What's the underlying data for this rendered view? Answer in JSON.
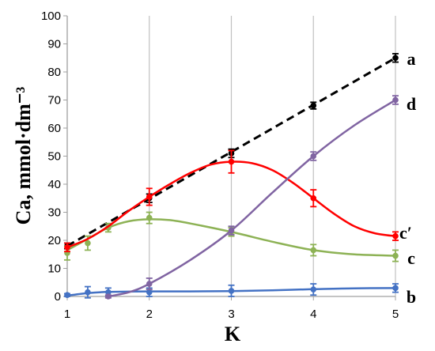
{
  "chart_data": {
    "type": "scatter",
    "xlabel": "K",
    "ylabel": "Ca, mmol·dm⁻³",
    "xlim": [
      1,
      5
    ],
    "ylim": [
      0,
      100
    ],
    "x_ticks": [
      "1",
      "2",
      "3",
      "4",
      "5"
    ],
    "y_ticks": [
      "0",
      "10",
      "20",
      "30",
      "40",
      "50",
      "60",
      "70",
      "80",
      "90",
      "100"
    ],
    "grid": "vertical",
    "series": [
      {
        "name": "a",
        "color": "#000000",
        "line_style": "dashed",
        "points": [
          {
            "x": 1,
            "y": 18,
            "err": 1
          },
          {
            "x": 2,
            "y": 35,
            "err": 1.5
          },
          {
            "x": 3,
            "y": 51,
            "err": 1.5
          },
          {
            "x": 4,
            "y": 68,
            "err": 1.2
          },
          {
            "x": 5,
            "y": 85,
            "err": 1.5
          }
        ],
        "curve": [
          [
            1,
            18
          ],
          [
            5,
            85
          ]
        ]
      },
      {
        "name": "b",
        "color": "#4472c4",
        "line_style": "solid",
        "points": [
          {
            "x": 1,
            "y": 0.5,
            "err": 0.5
          },
          {
            "x": 1.25,
            "y": 1.5,
            "err": 2
          },
          {
            "x": 1.5,
            "y": 1.5,
            "err": 1.5
          },
          {
            "x": 2,
            "y": 1.5,
            "err": 1.5
          },
          {
            "x": 3,
            "y": 2,
            "err": 2
          },
          {
            "x": 4,
            "y": 2.5,
            "err": 2
          },
          {
            "x": 5,
            "y": 3,
            "err": 1.5
          }
        ],
        "curve": [
          [
            1,
            0.3
          ],
          [
            1.25,
            1.2
          ],
          [
            1.5,
            1.6
          ],
          [
            2,
            1.8
          ],
          [
            2.5,
            1.8
          ],
          [
            3,
            1.9
          ],
          [
            3.5,
            2.2
          ],
          [
            4,
            2.6
          ],
          [
            4.5,
            2.9
          ],
          [
            5,
            3
          ]
        ]
      },
      {
        "name": "c",
        "color": "#8db255",
        "line_style": "solid",
        "points": [
          {
            "x": 1,
            "y": 15.5,
            "err": 2.5
          },
          {
            "x": 1.25,
            "y": 19,
            "err": 2.5
          },
          {
            "x": 1.5,
            "y": 24.5,
            "err": 1.5
          },
          {
            "x": 2,
            "y": 28,
            "err": 2
          },
          {
            "x": 3,
            "y": 23,
            "err": 1.5
          },
          {
            "x": 4,
            "y": 16.5,
            "err": 2
          },
          {
            "x": 5,
            "y": 14.5,
            "err": 2
          }
        ],
        "curve": [
          [
            1,
            16.5
          ],
          [
            1.25,
            20.5
          ],
          [
            1.5,
            24.5
          ],
          [
            1.75,
            26.8
          ],
          [
            2,
            27.5
          ],
          [
            2.25,
            27.2
          ],
          [
            2.5,
            26
          ],
          [
            3,
            23
          ],
          [
            3.5,
            19.5
          ],
          [
            4,
            16.5
          ],
          [
            4.5,
            15
          ],
          [
            5,
            14.5
          ]
        ]
      },
      {
        "name": "c′",
        "color": "#ff0000",
        "line_style": "solid",
        "points": [
          {
            "x": 1,
            "y": 17.5,
            "err": 1.5
          },
          {
            "x": 2,
            "y": 35.5,
            "err": 3
          },
          {
            "x": 3,
            "y": 48,
            "err": 4
          },
          {
            "x": 4,
            "y": 35,
            "err": 3
          },
          {
            "x": 5,
            "y": 21.5,
            "err": 1.5
          }
        ],
        "curve": [
          [
            1,
            17.5
          ],
          [
            1.25,
            20.5
          ],
          [
            1.5,
            25
          ],
          [
            1.75,
            30.5
          ],
          [
            2,
            35.5
          ],
          [
            2.25,
            40
          ],
          [
            2.5,
            44
          ],
          [
            2.75,
            47
          ],
          [
            3,
            48
          ],
          [
            3.25,
            47.5
          ],
          [
            3.5,
            45
          ],
          [
            3.75,
            40.5
          ],
          [
            4,
            35
          ],
          [
            4.25,
            29.5
          ],
          [
            4.5,
            25
          ],
          [
            4.75,
            22.5
          ],
          [
            5,
            21.5
          ]
        ]
      },
      {
        "name": "d",
        "color": "#8064a2",
        "line_style": "solid",
        "points": [
          {
            "x": 1.5,
            "y": 0,
            "err": 0.5
          },
          {
            "x": 2,
            "y": 4.5,
            "err": 2
          },
          {
            "x": 3,
            "y": 23.5,
            "err": 1.5
          },
          {
            "x": 4,
            "y": 50,
            "err": 1.5
          },
          {
            "x": 5,
            "y": 70,
            "err": 1.5
          }
        ],
        "curve": [
          [
            1.5,
            0
          ],
          [
            1.75,
            1.5
          ],
          [
            2,
            4.5
          ],
          [
            2.5,
            13
          ],
          [
            3,
            23.5
          ],
          [
            3.5,
            37
          ],
          [
            4,
            50
          ],
          [
            4.5,
            61
          ],
          [
            5,
            70
          ]
        ]
      }
    ]
  }
}
